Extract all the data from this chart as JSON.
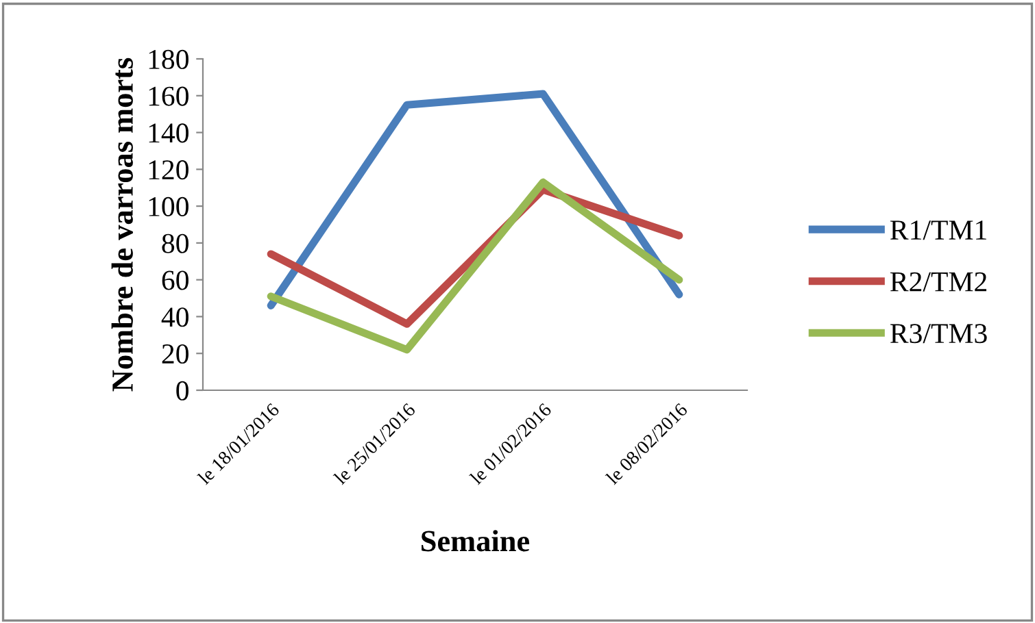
{
  "chart_data": {
    "type": "line",
    "xlabel": "Semaine",
    "ylabel": "Nombre de varroas morts",
    "categories": [
      "le 18/01/2016",
      "le 25/01/2016",
      "le 01/02/2016",
      "le 08/02/2016"
    ],
    "series": [
      {
        "name": "R1/TM1",
        "color": "#4a7ebb",
        "values": [
          46,
          155,
          161,
          52
        ]
      },
      {
        "name": "R2/TM2",
        "color": "#be4b48",
        "values": [
          74,
          36,
          109,
          84
        ]
      },
      {
        "name": "R3/TM3",
        "color": "#98b954",
        "values": [
          51,
          22,
          113,
          60
        ]
      }
    ],
    "ylim": [
      0,
      180
    ],
    "yticks": [
      0,
      20,
      40,
      60,
      80,
      100,
      120,
      140,
      160,
      180
    ],
    "grid": false,
    "legend": "right",
    "marker": "none",
    "line_style": "solid"
  }
}
